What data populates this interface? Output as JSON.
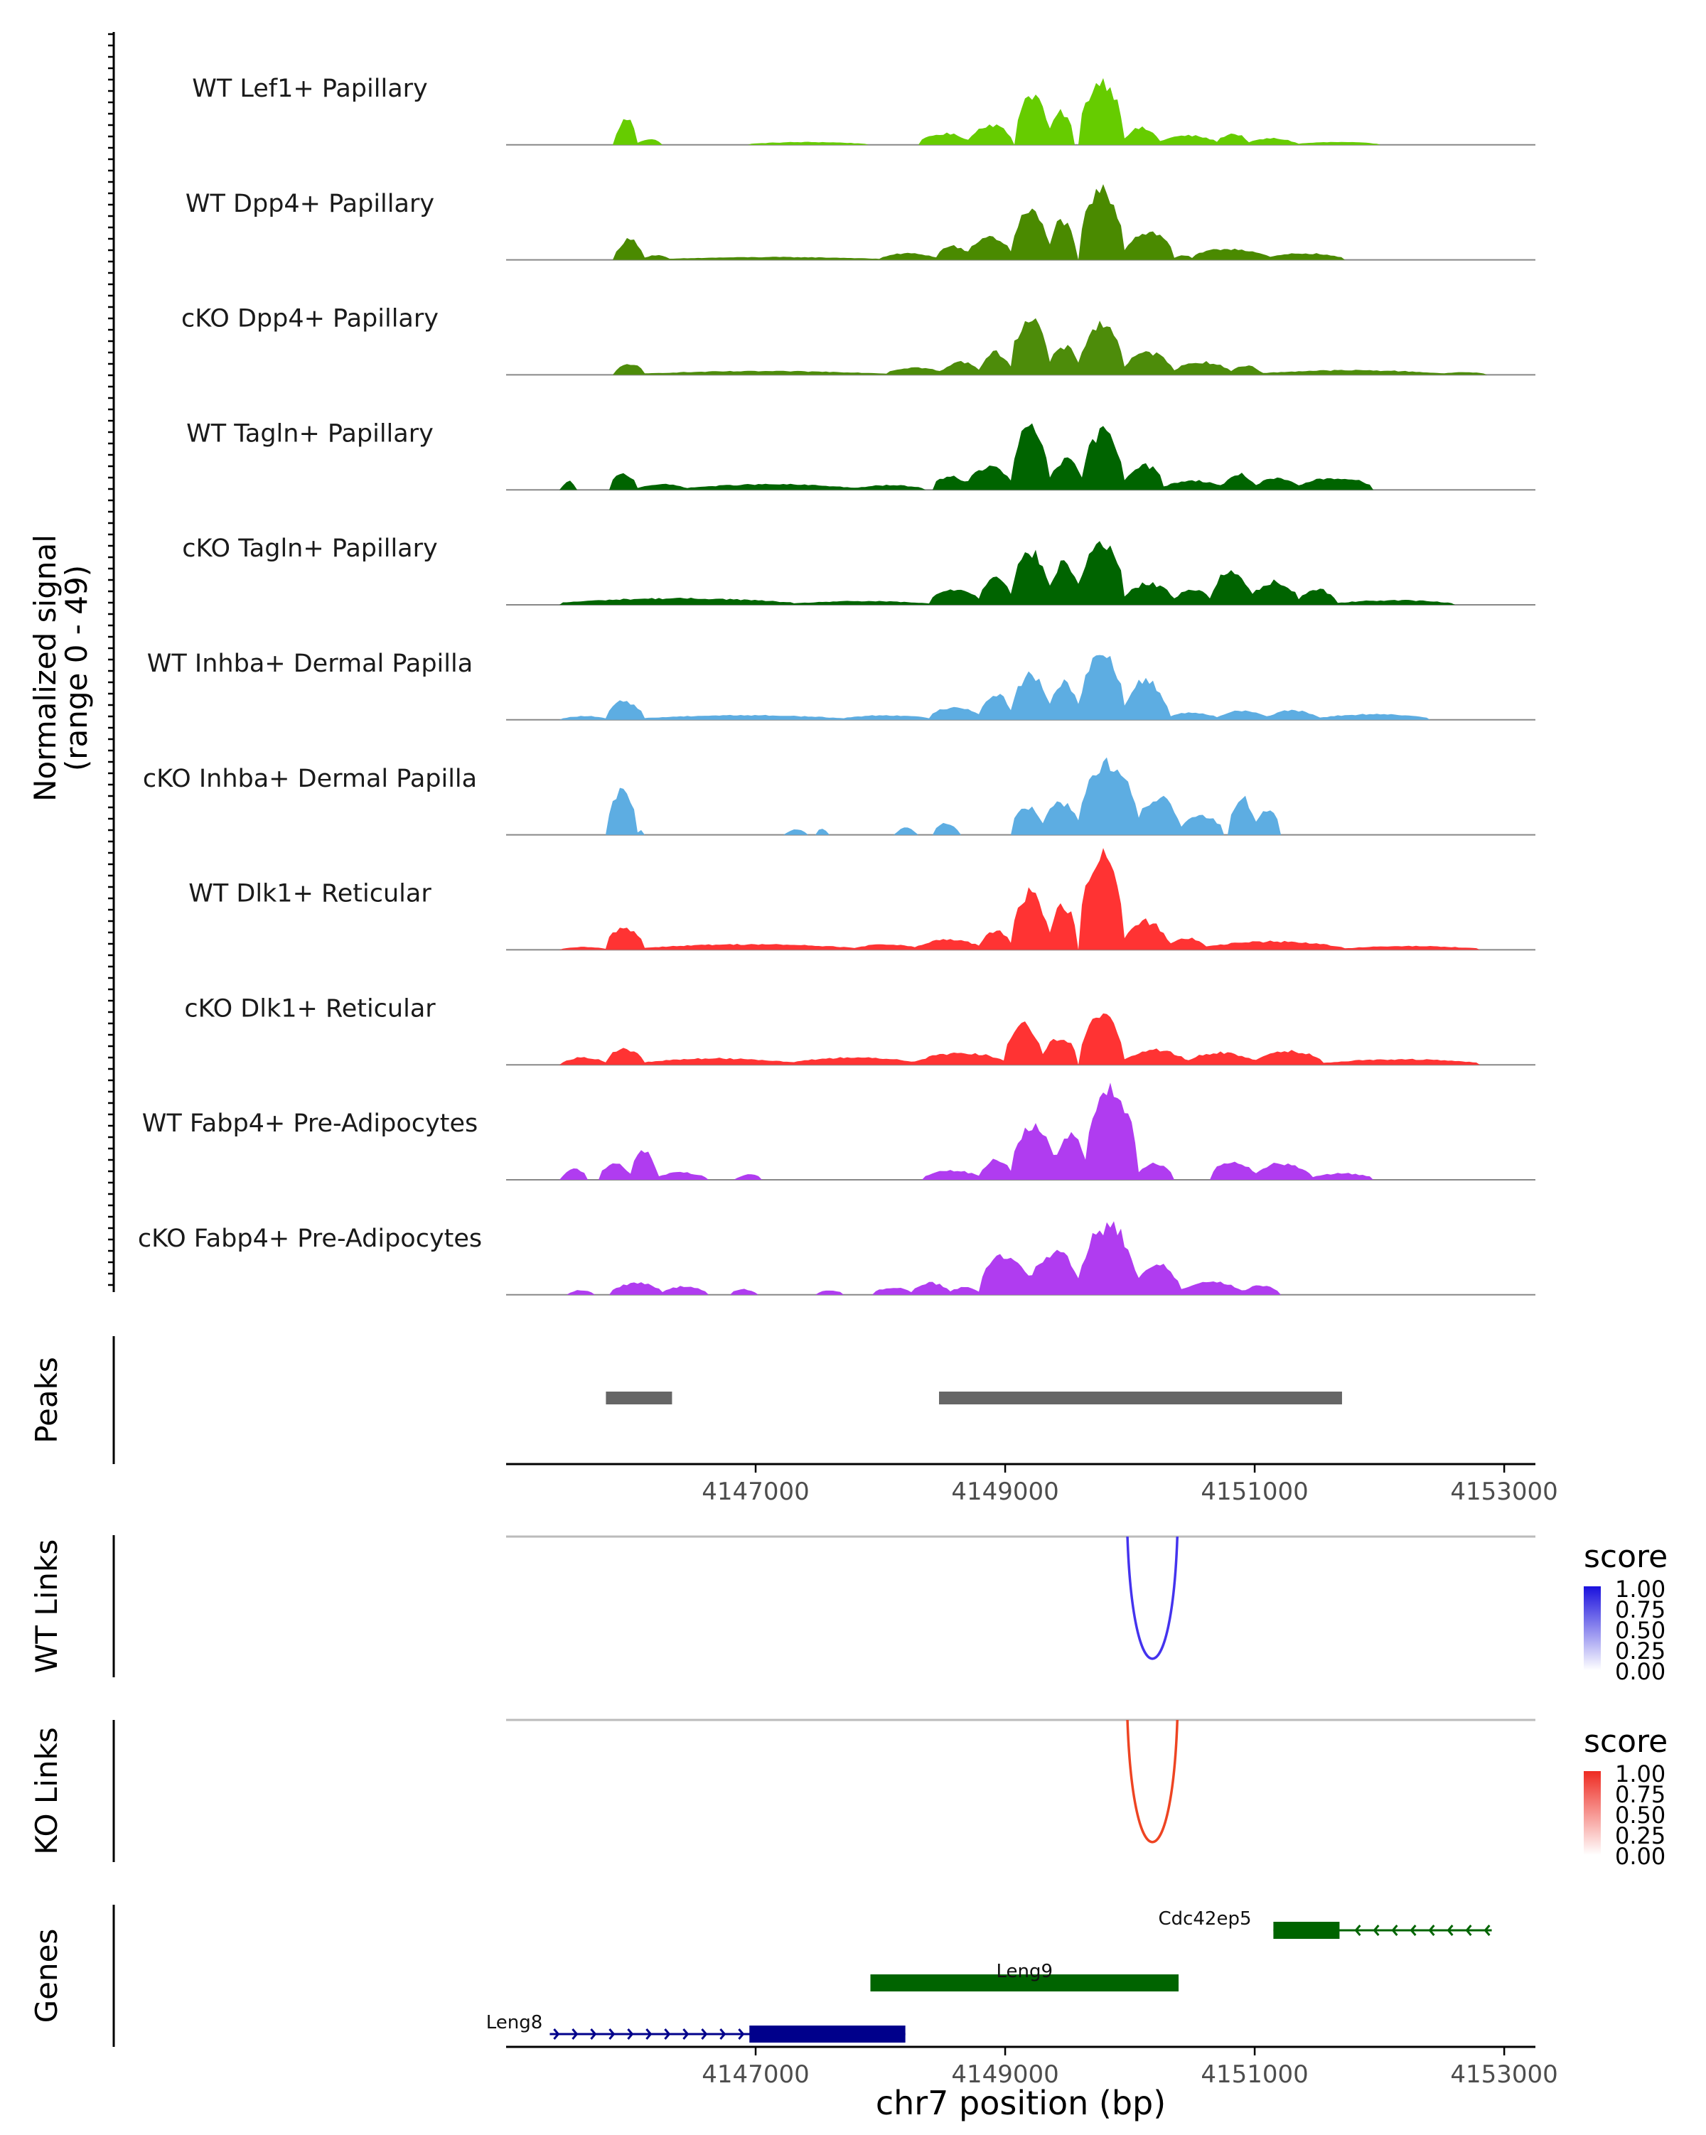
{
  "chart_data": {
    "type": "area",
    "title": "",
    "region": "chr7",
    "x_range": [
      4145000,
      4153250
    ],
    "x_ticks": [
      4147000,
      4149000,
      4151000,
      4153000
    ],
    "x_tick_labels": [
      "4147000",
      "4149000",
      "4151000",
      "4153000"
    ],
    "xlabel": "chr7 position (bp)",
    "signal_ylabel_line1": "Normalized signal",
    "signal_ylabel_line2": "(range 0 - 49)",
    "ylim": [
      0,
      49
    ],
    "tracks": [
      {
        "name": "WT Lef1+ Papillary",
        "color": "#66cc00",
        "peaks": [
          [
            4145880,
            4146050,
            0.28
          ],
          [
            4146050,
            4146250,
            0.06
          ],
          [
            4146950,
            4147900,
            0.03
          ],
          [
            4148320,
            4148720,
            0.12
          ],
          [
            4148720,
            4149050,
            0.22
          ],
          [
            4149080,
            4149350,
            0.55
          ],
          [
            4149350,
            4149550,
            0.35
          ],
          [
            4149600,
            4149950,
            0.69
          ],
          [
            4149950,
            4150230,
            0.18
          ],
          [
            4150230,
            4150700,
            0.1
          ],
          [
            4150700,
            4150950,
            0.12
          ],
          [
            4150950,
            4151330,
            0.07
          ],
          [
            4151330,
            4152000,
            0.03
          ]
        ]
      },
      {
        "name": "WT Dpp4+ Papillary",
        "color": "#4a8a00",
        "peaks": [
          [
            4145880,
            4146100,
            0.22
          ],
          [
            4146100,
            4146300,
            0.05
          ],
          [
            4146300,
            4148000,
            0.03
          ],
          [
            4148000,
            4148450,
            0.07
          ],
          [
            4148450,
            4148700,
            0.15
          ],
          [
            4148700,
            4149050,
            0.25
          ],
          [
            4149050,
            4149350,
            0.52
          ],
          [
            4149350,
            4149560,
            0.42
          ],
          [
            4149600,
            4149950,
            0.75
          ],
          [
            4149950,
            4150350,
            0.3
          ],
          [
            4150350,
            4150500,
            0.05
          ],
          [
            4150500,
            4151100,
            0.12
          ],
          [
            4151100,
            4151700,
            0.07
          ]
        ]
      },
      {
        "name": "cKO Dpp4+ Papillary",
        "color": "#4d8c0a",
        "peaks": [
          [
            4145880,
            4146100,
            0.12
          ],
          [
            4146100,
            4148050,
            0.04
          ],
          [
            4148050,
            4148500,
            0.08
          ],
          [
            4148500,
            4148800,
            0.14
          ],
          [
            4148800,
            4149050,
            0.24
          ],
          [
            4149050,
            4149350,
            0.62
          ],
          [
            4149350,
            4149600,
            0.3
          ],
          [
            4149600,
            4149950,
            0.55
          ],
          [
            4149950,
            4150350,
            0.24
          ],
          [
            4150350,
            4150800,
            0.14
          ],
          [
            4150800,
            4151050,
            0.1
          ],
          [
            4151050,
            4152500,
            0.05
          ],
          [
            4152500,
            4152850,
            0.03
          ]
        ]
      },
      {
        "name": "WT Tagln+ Papillary",
        "color": "#006400",
        "peaks": [
          [
            4145450,
            4145560,
            0.09
          ],
          [
            4145830,
            4146050,
            0.17
          ],
          [
            4146050,
            4146450,
            0.06
          ],
          [
            4146450,
            4147800,
            0.06
          ],
          [
            4147800,
            4148350,
            0.05
          ],
          [
            4148420,
            4148700,
            0.15
          ],
          [
            4148700,
            4149050,
            0.25
          ],
          [
            4149050,
            4149350,
            0.67
          ],
          [
            4149350,
            4149620,
            0.32
          ],
          [
            4149620,
            4149950,
            0.63
          ],
          [
            4149950,
            4150270,
            0.27
          ],
          [
            4150270,
            4150750,
            0.1
          ],
          [
            4150750,
            4151000,
            0.17
          ],
          [
            4151000,
            4151350,
            0.12
          ],
          [
            4151350,
            4151950,
            0.13
          ]
        ]
      },
      {
        "name": "cKO Tagln+ Papillary",
        "color": "#006400",
        "peaks": [
          [
            4145450,
            4147300,
            0.07
          ],
          [
            4147300,
            4148400,
            0.04
          ],
          [
            4148400,
            4148800,
            0.17
          ],
          [
            4148800,
            4149050,
            0.32
          ],
          [
            4149050,
            4149350,
            0.57
          ],
          [
            4149350,
            4149600,
            0.45
          ],
          [
            4149600,
            4149950,
            0.68
          ],
          [
            4149950,
            4150350,
            0.23
          ],
          [
            4150350,
            4150650,
            0.17
          ],
          [
            4150650,
            4150970,
            0.36
          ],
          [
            4150970,
            4151350,
            0.25
          ],
          [
            4151350,
            4151650,
            0.17
          ],
          [
            4151650,
            4152600,
            0.05
          ]
        ]
      },
      {
        "name": "WT Inhba+ Dermal Papilla",
        "color": "#5dade2",
        "peaks": [
          [
            4145450,
            4145800,
            0.04
          ],
          [
            4145800,
            4146100,
            0.2
          ],
          [
            4146100,
            4147700,
            0.05
          ],
          [
            4147700,
            4148400,
            0.05
          ],
          [
            4148400,
            4148800,
            0.14
          ],
          [
            4148800,
            4149050,
            0.28
          ],
          [
            4149050,
            4149350,
            0.48
          ],
          [
            4149350,
            4149600,
            0.4
          ],
          [
            4149600,
            4149950,
            0.73
          ],
          [
            4149950,
            4150300,
            0.42
          ],
          [
            4150300,
            4150700,
            0.08
          ],
          [
            4150700,
            4151100,
            0.1
          ],
          [
            4151100,
            4151500,
            0.1
          ],
          [
            4151500,
            4152400,
            0.06
          ]
        ]
      },
      {
        "name": "cKO Inhba+ Dermal Papilla",
        "color": "#5dade2",
        "peaks": [
          [
            4145820,
            4146050,
            0.48
          ],
          [
            4146050,
            4146100,
            0.05
          ],
          [
            4147250,
            4147400,
            0.06
          ],
          [
            4147480,
            4147580,
            0.06
          ],
          [
            4148130,
            4148280,
            0.08
          ],
          [
            4148430,
            4148620,
            0.13
          ],
          [
            4149050,
            4149300,
            0.3
          ],
          [
            4149300,
            4149600,
            0.35
          ],
          [
            4149600,
            4150050,
            0.78
          ],
          [
            4150050,
            4150400,
            0.4
          ],
          [
            4150400,
            4150750,
            0.2
          ],
          [
            4150800,
            4151000,
            0.41
          ],
          [
            4151000,
            4151200,
            0.28
          ]
        ]
      },
      {
        "name": "WT Dlk1+ Reticular",
        "color": "#ff3333",
        "peaks": [
          [
            4145450,
            4145800,
            0.03
          ],
          [
            4145800,
            4146100,
            0.24
          ],
          [
            4146100,
            4147800,
            0.06
          ],
          [
            4147800,
            4148300,
            0.06
          ],
          [
            4148300,
            4148800,
            0.11
          ],
          [
            4148800,
            4149050,
            0.2
          ],
          [
            4149050,
            4149350,
            0.62
          ],
          [
            4149350,
            4149580,
            0.48
          ],
          [
            4149600,
            4149950,
            1.0
          ],
          [
            4149950,
            4150300,
            0.31
          ],
          [
            4150300,
            4150600,
            0.13
          ],
          [
            4150600,
            4151700,
            0.09
          ],
          [
            4151700,
            4152800,
            0.04
          ]
        ]
      },
      {
        "name": "cKO Dlk1+ Reticular",
        "color": "#ff3333",
        "peaks": [
          [
            4145450,
            4145800,
            0.08
          ],
          [
            4145800,
            4146100,
            0.17
          ],
          [
            4146100,
            4147300,
            0.07
          ],
          [
            4147300,
            4148300,
            0.08
          ],
          [
            4148300,
            4149000,
            0.13
          ],
          [
            4149000,
            4149300,
            0.44
          ],
          [
            4149300,
            4149580,
            0.3
          ],
          [
            4149600,
            4149950,
            0.53
          ],
          [
            4149950,
            4150450,
            0.16
          ],
          [
            4150450,
            4151000,
            0.13
          ],
          [
            4151000,
            4151550,
            0.15
          ],
          [
            4151550,
            4152800,
            0.06
          ]
        ]
      },
      {
        "name": "WT Fabp4+ Pre-Adipocytes",
        "color": "#b03cf0",
        "peaks": [
          [
            4145450,
            4145650,
            0.12
          ],
          [
            4145750,
            4146000,
            0.17
          ],
          [
            4146000,
            4146200,
            0.33
          ],
          [
            4146200,
            4146600,
            0.08
          ],
          [
            4146850,
            4147050,
            0.06
          ],
          [
            4148350,
            4148800,
            0.1
          ],
          [
            4148800,
            4149050,
            0.22
          ],
          [
            4149050,
            4149400,
            0.6
          ],
          [
            4149400,
            4149650,
            0.49
          ],
          [
            4149650,
            4150050,
            1.0
          ],
          [
            4150050,
            4150350,
            0.18
          ],
          [
            4150650,
            4151000,
            0.2
          ],
          [
            4151000,
            4151450,
            0.18
          ],
          [
            4151450,
            4151950,
            0.07
          ]
        ]
      },
      {
        "name": "cKO Fabp4+ Pre-Adipocytes",
        "color": "#b03cf0",
        "peaks": [
          [
            4145500,
            4145700,
            0.05
          ],
          [
            4145850,
            4146250,
            0.13
          ],
          [
            4146250,
            4146600,
            0.09
          ],
          [
            4146800,
            4147000,
            0.06
          ],
          [
            4147500,
            4147700,
            0.05
          ],
          [
            4147950,
            4148250,
            0.08
          ],
          [
            4148250,
            4148550,
            0.13
          ],
          [
            4148550,
            4148800,
            0.08
          ],
          [
            4148800,
            4149200,
            0.44
          ],
          [
            4149200,
            4149600,
            0.47
          ],
          [
            4149600,
            4150050,
            0.75
          ],
          [
            4150050,
            4150400,
            0.33
          ],
          [
            4150400,
            4150900,
            0.14
          ],
          [
            4150900,
            4151200,
            0.1
          ]
        ]
      }
    ],
    "peaks_track": {
      "label": "Peaks",
      "color": "#666666",
      "regions": [
        [
          4145800,
          4146330
        ],
        [
          4148470,
          4151700
        ]
      ]
    },
    "links": [
      {
        "label": "WT Links",
        "start": 4149980,
        "end": 4150380,
        "score": 0.85,
        "color": "#4433ee",
        "legend": {
          "title": "score",
          "values": [
            "1.00",
            "0.75",
            "0.50",
            "0.25",
            "0.00"
          ],
          "high_color": "#1a11dd"
        }
      },
      {
        "label": "KO Links",
        "start": 4149980,
        "end": 4150380,
        "score": 0.85,
        "color": "#ee4422",
        "legend": {
          "title": "score",
          "values": [
            "1.00",
            "0.75",
            "0.50",
            "0.25",
            "0.00"
          ],
          "high_color": "#ee2b22"
        }
      }
    ],
    "genes_track": {
      "label": "Genes",
      "genes": [
        {
          "name": "Cdc42ep5",
          "start": 4151150,
          "end": 4152900,
          "body_start": 4151150,
          "body_end": 4151680,
          "strand": "-",
          "row": 0,
          "color": "#006400"
        },
        {
          "name": "Leng9",
          "start": 4147920,
          "end": 4150390,
          "body_start": 4147920,
          "body_end": 4150390,
          "strand": "-",
          "row": 1,
          "color": "#006400"
        },
        {
          "name": "Leng8",
          "start": 4145350,
          "end": 4148200,
          "body_start": 4146950,
          "body_end": 4148200,
          "strand": "+",
          "row": 2,
          "color": "#00008b"
        }
      ]
    }
  }
}
